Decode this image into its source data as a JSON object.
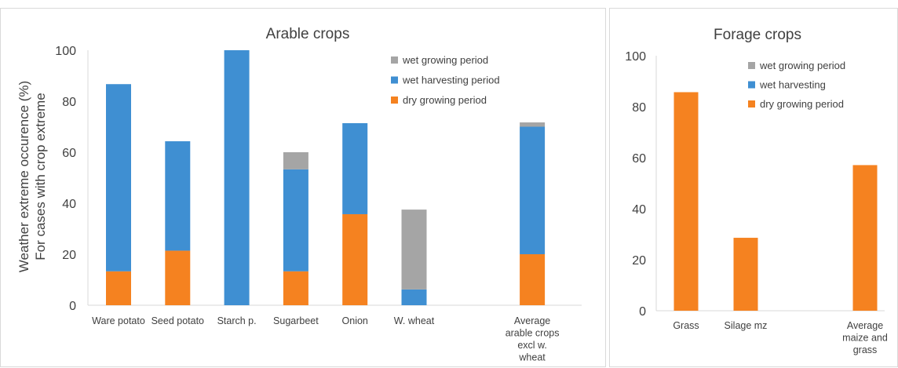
{
  "chart_data": [
    {
      "type": "bar",
      "stacked": true,
      "title": "Arable crops",
      "ylabel_lines": [
        "Weather extreme occurence (%)",
        "For cases with crop extreme"
      ],
      "ylim": [
        0,
        100
      ],
      "yticks": [
        0,
        20,
        40,
        60,
        80,
        100
      ],
      "grid": false,
      "legend": "top-right",
      "legend_order": [
        "wet growing period",
        "wet harvesting period",
        "dry growing period"
      ],
      "categories": [
        [
          "Ware potato"
        ],
        [
          "Seed potato"
        ],
        [
          "Starch p."
        ],
        [
          "Sugarbeet"
        ],
        [
          "Onion"
        ],
        [
          "W. wheat"
        ],
        [
          ""
        ],
        [
          "Average",
          "arable crops",
          "excl w.",
          "wheat"
        ]
      ],
      "series": [
        {
          "name": "dry growing period",
          "color": "#f58220",
          "values": [
            13.3,
            21.4,
            0,
            13.3,
            35.7,
            0,
            0,
            20
          ]
        },
        {
          "name": "wet harvesting period",
          "color": "#3f8fd2",
          "values": [
            73.4,
            42.9,
            100,
            40,
            35.7,
            6.2,
            0,
            50
          ]
        },
        {
          "name": "wet growing period",
          "color": "#a5a5a5",
          "values": [
            0,
            0,
            0,
            6.7,
            0,
            31.3,
            0,
            1.7
          ]
        }
      ]
    },
    {
      "type": "bar",
      "stacked": true,
      "title": "Forage crops",
      "ylim": [
        0,
        100
      ],
      "yticks": [
        0,
        20,
        40,
        60,
        80,
        100
      ],
      "grid": false,
      "legend": "top-right",
      "legend_order": [
        "wet growing period",
        "wet harvesting",
        "dry growing period"
      ],
      "categories": [
        [
          "Grass"
        ],
        [
          "Silage mz"
        ],
        [
          ""
        ],
        [
          "Average",
          "maize and",
          "grass"
        ]
      ],
      "series": [
        {
          "name": "dry growing period",
          "color": "#f58220",
          "values": [
            85.7,
            28.6,
            0,
            57.1
          ]
        },
        {
          "name": "wet harvesting",
          "color": "#3f8fd2",
          "values": [
            0,
            0,
            0,
            0
          ]
        },
        {
          "name": "wet growing period",
          "color": "#a5a5a5",
          "values": [
            0,
            0,
            0,
            0
          ]
        }
      ]
    }
  ]
}
